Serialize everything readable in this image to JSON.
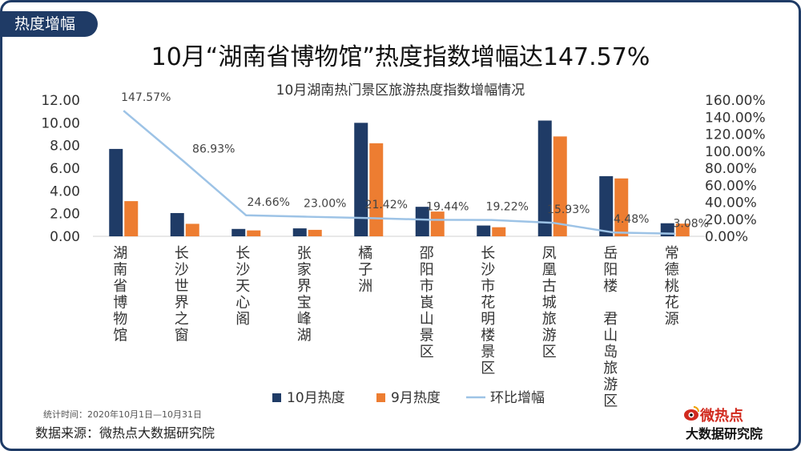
{
  "header": {
    "tab_label": "热度增幅",
    "headline": "10月“湖南省博物馆”热度指数增幅达147.57%"
  },
  "footer": {
    "stat_period": "统计时间：2020年10月1日—10月31日",
    "source": "数据来源：微热点大数据研究院",
    "logo_top": "微热点",
    "logo_bottom": "大数据研究院"
  },
  "colors": {
    "october": "#1f3b66",
    "september": "#ed7d31",
    "growth": "#9dc3e6",
    "frame": "#1f3b66"
  },
  "chart_data": {
    "type": "bar",
    "title": "10月湖南热门景区旅游热度指数增幅情况",
    "categories": [
      "湖南省博物馆",
      "长沙世界之窗",
      "长沙天心阁",
      "张家界宝峰湖",
      "橘子洲",
      "邵阳市崀山景区",
      "长沙市花明楼景区",
      "凤凰古城旅游区",
      "岳阳楼 君山岛旅游区",
      "常德桃花源"
    ],
    "series": [
      {
        "name": "10月热度",
        "type": "bar",
        "axis": "left",
        "values": [
          7.7,
          2.05,
          0.65,
          0.7,
          10.0,
          2.6,
          0.95,
          10.2,
          5.3,
          1.15
        ]
      },
      {
        "name": "9月热度",
        "type": "bar",
        "axis": "left",
        "values": [
          3.1,
          1.1,
          0.52,
          0.57,
          8.2,
          2.18,
          0.8,
          8.8,
          5.1,
          1.12
        ]
      },
      {
        "name": "环比增幅",
        "type": "line",
        "axis": "right",
        "values": [
          147.57,
          86.93,
          24.66,
          23.0,
          21.42,
          19.44,
          19.22,
          15.93,
          4.48,
          3.08
        ],
        "labels": [
          "147.57%",
          "86.93%",
          "24.66%",
          "23.00%",
          "21.42%",
          "19.44%",
          "19.22%",
          "15.93%",
          "4.48%",
          "3.08%"
        ]
      }
    ],
    "y_left": {
      "min": 0,
      "max": 12,
      "ticks": [
        "0.00",
        "2.00",
        "4.00",
        "6.00",
        "8.00",
        "10.00",
        "12.00"
      ]
    },
    "y_right": {
      "min": 0,
      "max": 160,
      "ticks": [
        "0.00%",
        "20.00%",
        "40.00%",
        "60.00%",
        "80.00%",
        "100.00%",
        "120.00%",
        "140.00%",
        "160.00%"
      ]
    },
    "legend": {
      "position": "bottom",
      "entries": [
        "10月热度",
        "9月热度",
        "环比增幅"
      ]
    },
    "grid": false
  }
}
